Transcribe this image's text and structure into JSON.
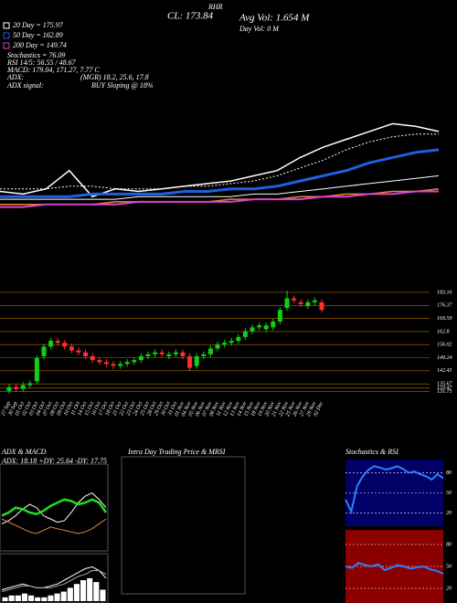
{
  "chart_data": [
    {
      "type": "line",
      "categories": [
        null,
        null,
        null,
        null,
        null,
        null,
        null,
        null,
        null,
        null,
        null,
        null,
        null,
        null,
        null,
        null,
        null,
        null,
        null,
        null
      ],
      "values": [
        130,
        129,
        131,
        138,
        128,
        131,
        130,
        131,
        132,
        133,
        134,
        136,
        138,
        143,
        147,
        150,
        153,
        156,
        155,
        153
      ],
      "color": "#ffffff",
      "ylim": [
        100,
        200
      ],
      "series": [
        {
          "name": "20 Day = 175.97",
          "color": "#ffffff",
          "dashed": true,
          "line_width": 1,
          "values": [
            131,
            131,
            131,
            132,
            132,
            131,
            131,
            131,
            132,
            132,
            133,
            134,
            136,
            139,
            142,
            146,
            149,
            151,
            152,
            152
          ]
        },
        {
          "name": "50 Day = 162.89",
          "color": "#1f5fe0",
          "line_width": 3,
          "values": [
            128,
            128,
            128,
            128,
            129,
            129,
            129,
            129,
            130,
            130,
            131,
            131,
            132,
            134,
            136,
            138,
            141,
            143,
            145,
            146
          ]
        },
        {
          "color": "#ffffff",
          "line_width": 1,
          "values": [
            127,
            127,
            127,
            127,
            127,
            127,
            128,
            128,
            128,
            128,
            128,
            129,
            129,
            130,
            131,
            132,
            133,
            134,
            135,
            136
          ]
        },
        {
          "color": "#e08a2c",
          "line_width": 1.5,
          "values": [
            125,
            125,
            125,
            125,
            125,
            126,
            126,
            126,
            126,
            126,
            127,
            127,
            127,
            128,
            128,
            129,
            129,
            130,
            130,
            131
          ]
        },
        {
          "name": "200 Day = 149.74",
          "color": "#e040d0",
          "line_width": 2,
          "values": [
            124,
            124,
            125,
            125,
            125,
            125,
            126,
            126,
            126,
            126,
            126,
            127,
            127,
            127,
            128,
            128,
            129,
            129,
            130,
            130
          ]
        }
      ],
      "texts": [
        "Stochastics = 76.09",
        "RSI 14/5: 56.55 / 48.67",
        "MACD: 179.04, 171.27, 7.77 C",
        "ADX:",
        "(MGR) 18.2, 25.6, 17.8",
        "ADX signal:",
        "BUY Sloping @ 18%",
        "CL: 173.84",
        "Avg Vol: 1.654 M",
        "Day Vol: 0 M",
        "RHR"
      ]
    },
    {
      "type": "candlestick",
      "categories": [
        "27 Sep",
        "30 Sep",
        "01 Oct",
        "02 Oct",
        "03 Oct",
        "04 Oct",
        "07 Oct",
        "08 Oct",
        "09 Oct",
        "10 Oct",
        "11 Oct",
        "14 Oct",
        "15 Oct",
        "16 Oct",
        "17 Oct",
        "18 Oct",
        "21 Oct",
        "22 Oct",
        "23 Oct",
        "24 Oct",
        "25 Oct",
        "28 Oct",
        "29 Oct",
        "30 Oct",
        "31 Oct",
        "01 Nov",
        "04 Nov",
        "05 Nov",
        "06 Nov",
        "07 Nov",
        "08 Nov",
        "11 Nov",
        "12 Nov",
        "13 Nov",
        "14 Nov",
        "15 Nov",
        "18 Nov",
        "19 Nov",
        "20 Nov",
        "21 Nov",
        "22 Nov",
        "25 Nov",
        "26 Nov",
        "27 Nov",
        "29 Nov",
        "02 Dec"
      ],
      "open": [
        132,
        134,
        133,
        135,
        137,
        150,
        155,
        158,
        157,
        155,
        153,
        152,
        150,
        148,
        147,
        146,
        145,
        146,
        147,
        148,
        150,
        151,
        152,
        150,
        151,
        152,
        150,
        145,
        150,
        151,
        154,
        156,
        157,
        158,
        160,
        163,
        165,
        164,
        165,
        168,
        175,
        180,
        178,
        176,
        178,
        178
      ],
      "high": [
        135.5,
        135.5,
        136.5,
        137.5,
        150.5,
        156.5,
        159.5,
        159.5,
        158.5,
        156.5,
        154.5,
        153.5,
        151.5,
        149.5,
        148.5,
        147.5,
        147.5,
        148.5,
        149.5,
        151.5,
        152.5,
        153.5,
        153.5,
        152.5,
        153.5,
        153.5,
        151.5,
        151.5,
        152.5,
        155.5,
        157.5,
        158.5,
        159.5,
        161.5,
        164.5,
        166.5,
        167.5,
        167.5,
        169.5,
        175.5,
        184,
        181.5,
        179.5,
        179.5,
        180.5,
        179.5
      ],
      "low": [
        130.5,
        131.5,
        131.5,
        133.5,
        135.5,
        148.5,
        153.5,
        155.5,
        153.5,
        151.5,
        150.5,
        148.5,
        146.5,
        145.5,
        144.5,
        143.5,
        143.5,
        144.5,
        145.5,
        146.5,
        148.5,
        149.5,
        149.5,
        148.5,
        149.5,
        148.5,
        142.5,
        143.5,
        148.5,
        149.5,
        152.5,
        154.5,
        155.5,
        156.5,
        158.5,
        161.5,
        163.5,
        162.5,
        163.5,
        166.5,
        173.5,
        177.5,
        175.5,
        174.5,
        176.5,
        172.5
      ],
      "close": [
        134,
        133,
        135,
        136,
        149,
        155,
        158,
        157,
        155,
        153,
        152,
        150,
        148,
        147,
        146,
        145,
        146,
        147,
        148,
        150,
        151,
        152,
        151,
        151,
        152,
        150,
        144,
        150,
        151,
        154,
        156,
        157,
        158,
        160,
        163,
        165,
        166,
        166,
        168,
        174,
        180,
        179,
        177,
        178,
        179,
        174
      ],
      "up_color": "#11d011",
      "down_color": "#ff3030",
      "ylim": [
        131,
        185.5
      ],
      "yticks": [
        131.75,
        133.47,
        135.67,
        142.45,
        149.24,
        156.02,
        162.8,
        169.59,
        176.37,
        183.16
      ],
      "grid": true,
      "grid_color": "#b36b00"
    },
    {
      "type": "line",
      "title": "ADX & MACD",
      "subtitle": "ADX: 18.18 +DY: 25.64 -DY: 17.75",
      "categories": [
        null,
        null,
        null,
        null,
        null,
        null,
        null,
        null,
        null,
        null,
        null,
        null,
        null,
        null,
        null,
        null
      ],
      "ylim": [
        0,
        45
      ],
      "series": [
        {
          "color": "#ffffff",
          "line_width": 1,
          "values": [
            15,
            17,
            20,
            24,
            27,
            25,
            20,
            18,
            16,
            17,
            22,
            28,
            32,
            34,
            30,
            25
          ]
        },
        {
          "color": "#e08a2c",
          "line_width": 1,
          "values": [
            18,
            16,
            14,
            12,
            10,
            9,
            11,
            13,
            12,
            11,
            10,
            9,
            10,
            12,
            15,
            18
          ]
        },
        {
          "color": "#22dd22",
          "line_width": 2.5,
          "values": [
            20,
            22,
            25,
            24,
            22,
            21,
            23,
            26,
            28,
            30,
            29,
            27,
            28,
            30,
            28,
            22
          ]
        }
      ]
    },
    {
      "type": "bar",
      "categories": [
        null,
        null,
        null,
        null,
        null,
        null,
        null,
        null,
        null,
        null,
        null,
        null,
        null,
        null,
        null,
        null
      ],
      "values": [
        2,
        3,
        3,
        4,
        3,
        2,
        2,
        3,
        4,
        5,
        7,
        9,
        11,
        12,
        10,
        6
      ],
      "color": "#ffffff",
      "ylim": [
        0,
        22
      ],
      "series": [
        {
          "color": "#ffffff",
          "line_width": 1,
          "values": [
            6,
            7,
            8,
            9,
            8,
            7,
            7,
            8,
            9,
            11,
            13,
            15,
            17,
            18,
            16,
            12
          ]
        },
        {
          "color": "#aaaaaa",
          "line_width": 1,
          "values": [
            5,
            6,
            7,
            8,
            8,
            7,
            7,
            7,
            8,
            9,
            11,
            13,
            14,
            16,
            16,
            14
          ]
        }
      ]
    },
    {
      "type": "line",
      "title": "Intra Day Trading Price & MRSI"
    },
    {
      "type": "line",
      "title": "Stochastics & RSI",
      "background": "#000066",
      "categories": [
        null,
        null,
        null,
        null,
        null,
        null,
        null,
        null,
        null,
        null,
        null,
        null,
        null,
        null,
        null,
        null,
        null,
        null
      ],
      "ylim": [
        0,
        100
      ],
      "yticks": [
        20,
        50,
        80
      ],
      "grid": true,
      "series": [
        {
          "color": "#2f7fff",
          "line_width": 2,
          "values": [
            40,
            22,
            60,
            75,
            85,
            90,
            88,
            85,
            87,
            90,
            86,
            80,
            82,
            78,
            75,
            70,
            78,
            72
          ]
        }
      ]
    },
    {
      "type": "line",
      "background": "#8a0000",
      "categories": [
        null,
        null,
        null,
        null,
        null,
        null,
        null,
        null,
        null,
        null,
        null,
        null,
        null,
        null,
        null,
        null
      ],
      "ylim": [
        0,
        100
      ],
      "yticks": [
        20,
        50,
        80
      ],
      "grid": true,
      "series": [
        {
          "color": "#2f7fff",
          "line_width": 2,
          "values": [
            50,
            48,
            55,
            52,
            50,
            53,
            45,
            48,
            52,
            50,
            47,
            49,
            50,
            46,
            44,
            40
          ]
        }
      ]
    }
  ]
}
